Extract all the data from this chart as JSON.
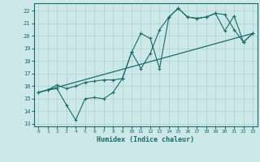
{
  "xlabel": "Humidex (Indice chaleur)",
  "xlim": [
    -0.5,
    23.5
  ],
  "ylim": [
    12.8,
    22.6
  ],
  "xticks": [
    0,
    1,
    2,
    3,
    4,
    5,
    6,
    7,
    8,
    9,
    10,
    11,
    12,
    13,
    14,
    15,
    16,
    17,
    18,
    19,
    20,
    21,
    22,
    23
  ],
  "yticks": [
    13,
    14,
    15,
    16,
    17,
    18,
    19,
    20,
    21,
    22
  ],
  "background_color": "#cce8e8",
  "grid_color": "#b0d4d4",
  "line_color": "#1a6b6b",
  "line1_x": [
    0,
    1,
    2,
    3,
    4,
    5,
    6,
    7,
    8,
    9,
    10,
    11,
    12,
    13,
    14,
    15,
    16,
    17,
    18,
    19,
    20,
    21,
    22,
    23
  ],
  "line1_y": [
    15.5,
    15.7,
    15.8,
    14.5,
    13.3,
    15.0,
    15.1,
    15.0,
    15.5,
    16.6,
    18.7,
    20.2,
    19.8,
    17.4,
    21.5,
    22.2,
    21.5,
    21.4,
    21.5,
    21.8,
    21.7,
    20.5,
    19.5,
    20.2
  ],
  "line2_x": [
    0,
    1,
    2,
    3,
    4,
    5,
    6,
    7,
    8,
    9,
    10,
    11,
    12,
    13,
    14,
    15,
    16,
    17,
    18,
    19,
    20,
    21,
    22,
    23
  ],
  "line2_y": [
    15.5,
    15.7,
    16.1,
    15.8,
    16.0,
    16.3,
    16.4,
    16.5,
    16.5,
    16.6,
    18.7,
    17.4,
    18.6,
    20.5,
    21.5,
    22.2,
    21.5,
    21.4,
    21.5,
    21.8,
    20.4,
    21.6,
    19.5,
    20.2
  ],
  "line3_x": [
    0,
    23
  ],
  "line3_y": [
    15.5,
    20.2
  ]
}
